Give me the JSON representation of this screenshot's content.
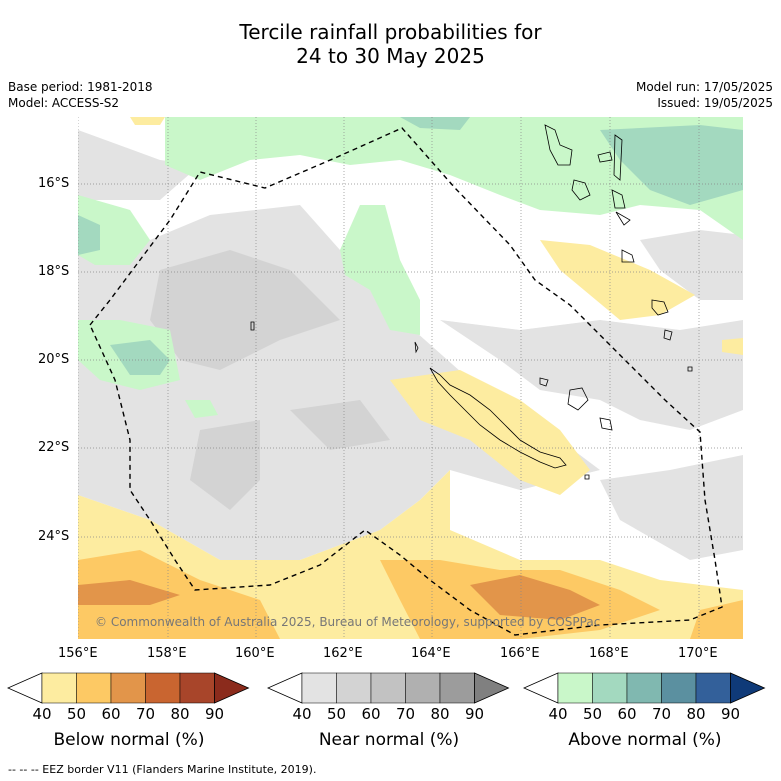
{
  "header": {
    "title_line1": "Tercile rainfall probabilities for",
    "title_line2": "24 to 30 May 2025",
    "base_period": "Base period: 1981-2018",
    "model": "Model: ACCESS-S2",
    "model_run": "Model run: 17/05/2025",
    "issued": "Issued: 19/05/2025"
  },
  "map": {
    "lat_labels": [
      "16°S",
      "18°S",
      "20°S",
      "22°S",
      "24°S"
    ],
    "lon_labels": [
      "156°E",
      "158°E",
      "160°E",
      "162°E",
      "164°E",
      "166°E",
      "168°E",
      "170°E"
    ],
    "copyright": "© Commonwealth of Australia 2025, Bureau of Meteorology, supported by COSPPac"
  },
  "colorbars": [
    {
      "name": "below",
      "title": "Below normal (%)",
      "ticks": [
        "40",
        "50",
        "60",
        "70",
        "80",
        "90"
      ],
      "colors": [
        "#ffffff",
        "#fdeca0",
        "#fdc964",
        "#e2954a",
        "#c96530",
        "#a8452a",
        "#8b2b1c"
      ]
    },
    {
      "name": "near",
      "title": "Near normal (%)",
      "ticks": [
        "40",
        "50",
        "60",
        "70",
        "80",
        "90"
      ],
      "colors": [
        "#ffffff",
        "#e3e3e3",
        "#d3d3d3",
        "#c2c2c2",
        "#b0b0b0",
        "#9c9c9c",
        "#808080"
      ]
    },
    {
      "name": "above",
      "title": "Above normal (%)",
      "ticks": [
        "40",
        "50",
        "60",
        "70",
        "80",
        "90"
      ],
      "colors": [
        "#ffffff",
        "#c9f7c9",
        "#a3d9bf",
        "#80b8b0",
        "#5b90a0",
        "#33609a",
        "#0f3a78"
      ]
    }
  ],
  "footer": "--  --  -- EEZ border V11 (Flanders Marine Institute, 2019)."
}
